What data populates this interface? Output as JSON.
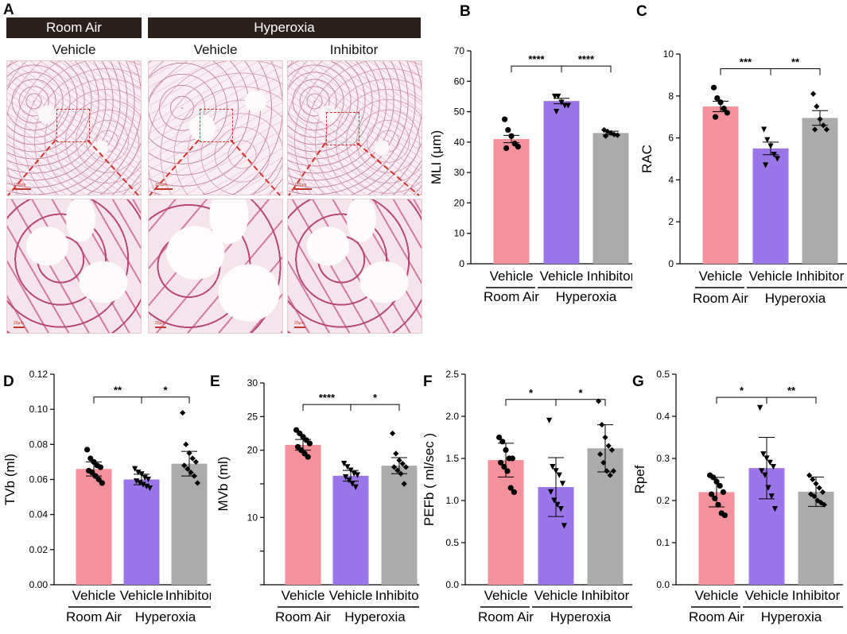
{
  "panel_a": {
    "letter": "A",
    "header_room_air": "Room Air",
    "header_hyperoxia": "Hyperoxia",
    "col1_label": "Vehicle",
    "col2_label": "Vehicle",
    "col3_label": "Inhibitor",
    "scale_low": "100μm",
    "scale_high": "20μm"
  },
  "colors": {
    "room_air_bar": "#f4929b",
    "hyperoxia_vehicle_bar": "#9b76e8",
    "inhibitor_bar": "#ababab",
    "header_bg": "#2b201c",
    "zoom_line": "#d6322a"
  },
  "chart_data": [
    {
      "id": "B",
      "type": "bar",
      "ylabel": "MLI (μm)",
      "ylim": [
        0,
        70
      ],
      "yticks": [
        "0",
        "10",
        "20",
        "30",
        "40",
        "50",
        "60",
        "70"
      ],
      "categories": [
        "Vehicle",
        "Vehicle",
        "Inhibitor"
      ],
      "group_labels": [
        "Room Air",
        "Hyperoxia"
      ],
      "values": [
        41,
        53.5,
        43
      ],
      "errors": [
        1.2,
        0.9,
        0.6
      ],
      "points": [
        [
          47.5,
          44,
          42,
          39.5,
          38.5,
          38
        ],
        [
          55,
          55,
          53,
          52,
          52,
          50
        ],
        [
          44,
          43.5,
          43,
          42.5,
          42.3,
          42
        ]
      ],
      "markers": [
        "circle",
        "triangle",
        "diamond"
      ],
      "significance": [
        {
          "from": 0,
          "to": 1,
          "label": "****",
          "level": 65
        },
        {
          "from": 1,
          "to": 2,
          "label": "****",
          "level": 65
        }
      ]
    },
    {
      "id": "C",
      "type": "bar",
      "ylabel": "RAC",
      "ylim": [
        0,
        10
      ],
      "yticks": [
        "0",
        "2",
        "4",
        "6",
        "8",
        "10"
      ],
      "categories": [
        "Vehicle",
        "Vehicle",
        "Inhibitor"
      ],
      "group_labels": [
        "Room Air",
        "Hyperoxia"
      ],
      "values": [
        7.5,
        5.5,
        6.95
      ],
      "errors": [
        0.25,
        0.3,
        0.35
      ],
      "points": [
        [
          8.4,
          7.9,
          7.7,
          7.4,
          7.2,
          7.0
        ],
        [
          6.4,
          5.9,
          5.6,
          5.2,
          5.0,
          4.7
        ],
        [
          8.1,
          7.5,
          6.9,
          6.6,
          6.4,
          6.4
        ]
      ],
      "markers": [
        "circle",
        "triangle",
        "diamond"
      ],
      "significance": [
        {
          "from": 0,
          "to": 1,
          "label": "***",
          "level": 9.3
        },
        {
          "from": 1,
          "to": 2,
          "label": "**",
          "level": 9.3
        }
      ]
    },
    {
      "id": "D",
      "type": "bar",
      "ylabel": "TVb (ml)",
      "ylim": [
        0,
        0.12
      ],
      "yticks": [
        "0.00",
        "0.02",
        "0.04",
        "0.06",
        "0.08",
        "0.10",
        "0.12"
      ],
      "categories": [
        "Vehicle",
        "Vehicle",
        "Inhibitor"
      ],
      "group_labels": [
        "Room Air",
        "Hyperoxia"
      ],
      "values": [
        0.066,
        0.06,
        0.069
      ],
      "errors": [
        0.004,
        0.003,
        0.007
      ],
      "points": [
        [
          0.077,
          0.072,
          0.07,
          0.068,
          0.067,
          0.065,
          0.064,
          0.062,
          0.06,
          0.058
        ],
        [
          0.066,
          0.064,
          0.063,
          0.061,
          0.06,
          0.059,
          0.058,
          0.057,
          0.056,
          0.055
        ],
        [
          0.098,
          0.08,
          0.075,
          0.072,
          0.07,
          0.068,
          0.066,
          0.064,
          0.062,
          0.058
        ]
      ],
      "markers": [
        "circle",
        "triangle",
        "diamond"
      ],
      "significance": [
        {
          "from": 0,
          "to": 1,
          "label": "**",
          "level": 0.107
        },
        {
          "from": 1,
          "to": 2,
          "label": "*",
          "level": 0.107
        }
      ]
    },
    {
      "id": "E",
      "type": "bar",
      "ylabel": "MVb (ml)",
      "ylim": [
        0,
        30
      ],
      "yticks": [
        "0",
        "5",
        "10",
        "15",
        "20",
        "25",
        "30"
      ],
      "tick_labels_shown": [
        "",
        "",
        "10",
        "",
        "20",
        "25",
        "30"
      ],
      "categories": [
        "Vehicle",
        "Vehicle",
        "Inhibitor"
      ],
      "group_labels": [
        "Room Air",
        "Hyperoxia"
      ],
      "values": [
        20.8,
        16.2,
        17.7
      ],
      "errors": [
        0.8,
        0.8,
        1.2
      ],
      "points": [
        [
          23,
          22.5,
          22,
          21.5,
          21,
          20.5,
          20,
          19.5,
          19
        ],
        [
          18,
          17.5,
          17,
          16.5,
          16.3,
          16,
          15.5,
          15,
          14.5
        ],
        [
          22.5,
          19.5,
          18.5,
          18,
          17.5,
          17.5,
          17,
          16.5,
          15
        ]
      ],
      "markers": [
        "circle",
        "triangle",
        "diamond"
      ],
      "significance": [
        {
          "from": 0,
          "to": 1,
          "label": "****",
          "level": 26.8
        },
        {
          "from": 1,
          "to": 2,
          "label": "*",
          "level": 26.8
        }
      ]
    },
    {
      "id": "F",
      "type": "bar",
      "ylabel": "PEFb ( ml/sec )",
      "ylim": [
        0,
        2.5
      ],
      "yticks": [
        "0.0",
        "0.5",
        "1.0",
        "1.5",
        "2.0",
        "2.5"
      ],
      "categories": [
        "Vehicle",
        "Vehicle",
        "Inhibitor"
      ],
      "group_labels": [
        "Room Air",
        "Hyperoxia"
      ],
      "values": [
        1.48,
        1.16,
        1.62
      ],
      "errors": [
        0.2,
        0.35,
        0.28
      ],
      "points": [
        [
          1.75,
          1.7,
          1.6,
          1.5,
          1.5,
          1.45,
          1.4,
          1.35,
          1.15,
          1.1
        ],
        [
          1.95,
          1.4,
          1.35,
          1.3,
          1.2,
          1.1,
          1.0,
          0.95,
          0.9,
          0.7
        ],
        [
          2.18,
          1.9,
          1.75,
          1.65,
          1.6,
          1.55,
          1.45,
          1.35,
          1.3,
          1.35
        ]
      ],
      "markers": [
        "circle",
        "triangle",
        "diamond"
      ],
      "significance": [
        {
          "from": 0,
          "to": 1,
          "label": "*",
          "level": 2.2
        },
        {
          "from": 1,
          "to": 2,
          "label": "*",
          "level": 2.2
        }
      ]
    },
    {
      "id": "G",
      "type": "bar",
      "ylabel": "Rpef",
      "ylim": [
        0,
        0.5
      ],
      "yticks": [
        "0.0",
        "0.1",
        "0.2",
        "0.3",
        "0.4",
        "0.5"
      ],
      "categories": [
        "Vehicle",
        "Vehicle",
        "Inhibitor"
      ],
      "group_labels": [
        "Room Air",
        "Hyperoxia"
      ],
      "values": [
        0.22,
        0.277,
        0.221
      ],
      "errors": [
        0.035,
        0.073,
        0.035
      ],
      "points": [
        [
          0.26,
          0.255,
          0.245,
          0.235,
          0.22,
          0.215,
          0.205,
          0.19,
          0.17,
          0.165
        ],
        [
          0.42,
          0.31,
          0.3,
          0.29,
          0.28,
          0.27,
          0.26,
          0.23,
          0.21,
          0.18
        ],
        [
          0.26,
          0.25,
          0.24,
          0.23,
          0.22,
          0.215,
          0.21,
          0.2,
          0.195,
          0.19
        ]
      ],
      "markers": [
        "circle",
        "triangle",
        "diamond"
      ],
      "significance": [
        {
          "from": 0,
          "to": 1,
          "label": "*",
          "level": 0.445
        },
        {
          "from": 1,
          "to": 2,
          "label": "**",
          "level": 0.445
        }
      ]
    }
  ]
}
